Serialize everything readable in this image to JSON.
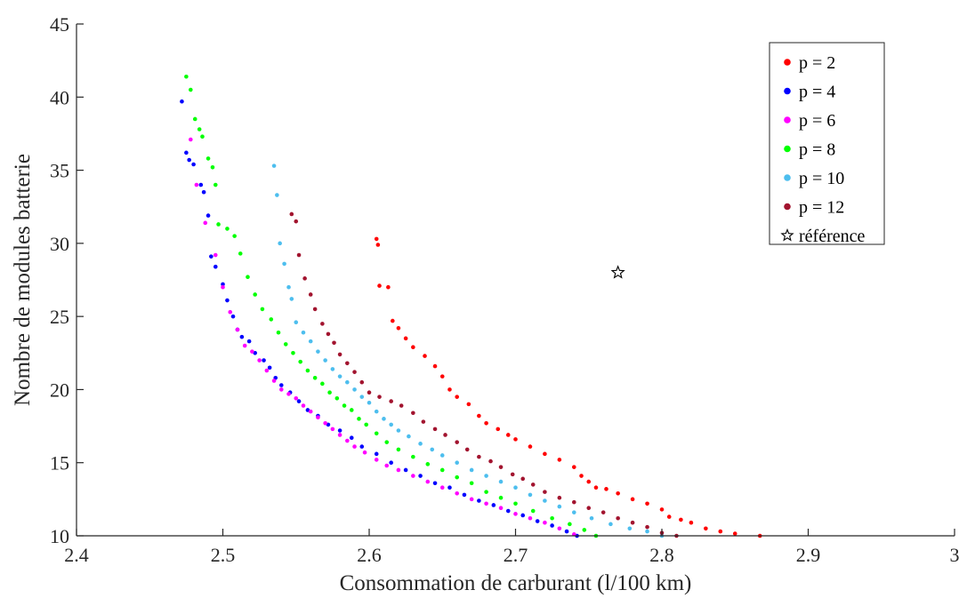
{
  "chart_data": {
    "type": "scatter",
    "title": "",
    "xlabel": "Consommation de carburant (l/100 km)",
    "ylabel": "Nombre de modules batterie",
    "xlim": [
      2.4,
      3.0
    ],
    "ylim": [
      10,
      45
    ],
    "x_ticks": [
      "2.4",
      "2.5",
      "2.6",
      "2.7",
      "2.8",
      "2.9",
      "3"
    ],
    "y_ticks": [
      "10",
      "15",
      "20",
      "25",
      "30",
      "35",
      "40",
      "45"
    ],
    "grid": false,
    "legend_position": "top-right",
    "series": [
      {
        "name": "p = 2",
        "color": "#ff0000",
        "points": [
          [
            2.605,
            30.3
          ],
          [
            2.606,
            29.9
          ],
          [
            2.607,
            27.1
          ],
          [
            2.613,
            27.0
          ],
          [
            2.616,
            24.7
          ],
          [
            2.62,
            24.2
          ],
          [
            2.625,
            23.5
          ],
          [
            2.63,
            22.9
          ],
          [
            2.638,
            22.3
          ],
          [
            2.645,
            21.6
          ],
          [
            2.65,
            20.9
          ],
          [
            2.655,
            20.0
          ],
          [
            2.66,
            19.5
          ],
          [
            2.668,
            19.0
          ],
          [
            2.675,
            18.2
          ],
          [
            2.68,
            17.7
          ],
          [
            2.688,
            17.3
          ],
          [
            2.695,
            16.9
          ],
          [
            2.7,
            16.6
          ],
          [
            2.71,
            16.1
          ],
          [
            2.72,
            15.6
          ],
          [
            2.73,
            15.2
          ],
          [
            2.74,
            14.7
          ],
          [
            2.745,
            14.1
          ],
          [
            2.75,
            13.7
          ],
          [
            2.755,
            13.3
          ],
          [
            2.762,
            13.2
          ],
          [
            2.77,
            12.9
          ],
          [
            2.78,
            12.5
          ],
          [
            2.79,
            12.2
          ],
          [
            2.8,
            11.8
          ],
          [
            2.805,
            11.3
          ],
          [
            2.813,
            11.1
          ],
          [
            2.82,
            10.9
          ],
          [
            2.83,
            10.5
          ],
          [
            2.84,
            10.3
          ],
          [
            2.85,
            10.15
          ],
          [
            2.867,
            10.0
          ]
        ]
      },
      {
        "name": "p = 4",
        "color": "#0000ff",
        "points": [
          [
            2.472,
            39.7
          ],
          [
            2.475,
            36.2
          ],
          [
            2.477,
            35.7
          ],
          [
            2.48,
            35.4
          ],
          [
            2.485,
            34.0
          ],
          [
            2.487,
            33.5
          ],
          [
            2.49,
            31.9
          ],
          [
            2.492,
            29.1
          ],
          [
            2.495,
            28.4
          ],
          [
            2.5,
            27.2
          ],
          [
            2.503,
            26.1
          ],
          [
            2.507,
            25.0
          ],
          [
            2.51,
            24.1
          ],
          [
            2.513,
            23.6
          ],
          [
            2.518,
            23.3
          ],
          [
            2.522,
            22.5
          ],
          [
            2.528,
            22.0
          ],
          [
            2.532,
            21.5
          ],
          [
            2.536,
            20.8
          ],
          [
            2.54,
            20.3
          ],
          [
            2.546,
            19.8
          ],
          [
            2.552,
            19.2
          ],
          [
            2.558,
            18.6
          ],
          [
            2.565,
            18.2
          ],
          [
            2.572,
            17.6
          ],
          [
            2.58,
            17.2
          ],
          [
            2.588,
            16.7
          ],
          [
            2.595,
            16.1
          ],
          [
            2.605,
            15.6
          ],
          [
            2.615,
            15.0
          ],
          [
            2.625,
            14.5
          ],
          [
            2.635,
            14.1
          ],
          [
            2.645,
            13.6
          ],
          [
            2.655,
            13.3
          ],
          [
            2.665,
            12.8
          ],
          [
            2.675,
            12.4
          ],
          [
            2.685,
            12.1
          ],
          [
            2.695,
            11.7
          ],
          [
            2.705,
            11.4
          ],
          [
            2.715,
            11.0
          ],
          [
            2.725,
            10.7
          ],
          [
            2.735,
            10.3
          ],
          [
            2.742,
            10.0
          ]
        ]
      },
      {
        "name": "p = 6",
        "color": "#ff00ff",
        "points": [
          [
            2.478,
            37.1
          ],
          [
            2.482,
            34.0
          ],
          [
            2.488,
            31.4
          ],
          [
            2.495,
            29.2
          ],
          [
            2.5,
            27.0
          ],
          [
            2.505,
            25.3
          ],
          [
            2.51,
            24.1
          ],
          [
            2.515,
            23.0
          ],
          [
            2.52,
            22.6
          ],
          [
            2.525,
            22.0
          ],
          [
            2.53,
            21.3
          ],
          [
            2.535,
            20.6
          ],
          [
            2.54,
            20.0
          ],
          [
            2.545,
            19.7
          ],
          [
            2.55,
            19.4
          ],
          [
            2.555,
            18.9
          ],
          [
            2.56,
            18.5
          ],
          [
            2.565,
            18.1
          ],
          [
            2.57,
            17.7
          ],
          [
            2.575,
            17.3
          ],
          [
            2.58,
            16.9
          ],
          [
            2.585,
            16.5
          ],
          [
            2.59,
            16.1
          ],
          [
            2.597,
            15.7
          ],
          [
            2.605,
            15.2
          ],
          [
            2.612,
            14.8
          ],
          [
            2.62,
            14.5
          ],
          [
            2.63,
            14.1
          ],
          [
            2.64,
            13.7
          ],
          [
            2.65,
            13.3
          ],
          [
            2.66,
            12.9
          ],
          [
            2.67,
            12.5
          ],
          [
            2.68,
            12.2
          ],
          [
            2.69,
            11.9
          ],
          [
            2.7,
            11.5
          ],
          [
            2.71,
            11.2
          ],
          [
            2.72,
            10.9
          ],
          [
            2.73,
            10.5
          ],
          [
            2.74,
            10.1
          ]
        ]
      },
      {
        "name": "p = 8",
        "color": "#00ff00",
        "points": [
          [
            2.475,
            41.4
          ],
          [
            2.478,
            40.5
          ],
          [
            2.481,
            38.5
          ],
          [
            2.484,
            37.8
          ],
          [
            2.486,
            37.3
          ],
          [
            2.49,
            35.8
          ],
          [
            2.493,
            35.2
          ],
          [
            2.495,
            34.0
          ],
          [
            2.497,
            31.3
          ],
          [
            2.503,
            31.0
          ],
          [
            2.508,
            30.5
          ],
          [
            2.512,
            29.3
          ],
          [
            2.517,
            27.7
          ],
          [
            2.522,
            26.5
          ],
          [
            2.527,
            25.5
          ],
          [
            2.533,
            24.8
          ],
          [
            2.538,
            23.9
          ],
          [
            2.543,
            23.1
          ],
          [
            2.548,
            22.5
          ],
          [
            2.553,
            21.9
          ],
          [
            2.558,
            21.3
          ],
          [
            2.563,
            20.8
          ],
          [
            2.568,
            20.4
          ],
          [
            2.573,
            19.8
          ],
          [
            2.578,
            19.4
          ],
          [
            2.583,
            18.9
          ],
          [
            2.588,
            18.6
          ],
          [
            2.593,
            18.0
          ],
          [
            2.598,
            17.6
          ],
          [
            2.605,
            17.0
          ],
          [
            2.612,
            16.4
          ],
          [
            2.62,
            15.9
          ],
          [
            2.63,
            15.4
          ],
          [
            2.64,
            14.9
          ],
          [
            2.65,
            14.5
          ],
          [
            2.66,
            14.0
          ],
          [
            2.67,
            13.6
          ],
          [
            2.68,
            13.0
          ],
          [
            2.69,
            12.6
          ],
          [
            2.7,
            12.2
          ],
          [
            2.712,
            11.7
          ],
          [
            2.725,
            11.2
          ],
          [
            2.737,
            10.8
          ],
          [
            2.747,
            10.4
          ],
          [
            2.755,
            10.0
          ]
        ]
      },
      {
        "name": "p = 10",
        "color": "#4dbeee",
        "points": [
          [
            2.535,
            35.3
          ],
          [
            2.537,
            33.3
          ],
          [
            2.539,
            30.0
          ],
          [
            2.542,
            28.6
          ],
          [
            2.545,
            27.0
          ],
          [
            2.547,
            26.2
          ],
          [
            2.55,
            24.6
          ],
          [
            2.555,
            23.9
          ],
          [
            2.56,
            23.3
          ],
          [
            2.565,
            22.6
          ],
          [
            2.57,
            22.0
          ],
          [
            2.575,
            21.4
          ],
          [
            2.58,
            20.9
          ],
          [
            2.585,
            20.5
          ],
          [
            2.59,
            20.0
          ],
          [
            2.595,
            19.5
          ],
          [
            2.6,
            19.1
          ],
          [
            2.605,
            18.5
          ],
          [
            2.61,
            18.0
          ],
          [
            2.615,
            17.6
          ],
          [
            2.62,
            17.2
          ],
          [
            2.627,
            16.8
          ],
          [
            2.635,
            16.3
          ],
          [
            2.643,
            15.9
          ],
          [
            2.65,
            15.5
          ],
          [
            2.66,
            15.0
          ],
          [
            2.67,
            14.5
          ],
          [
            2.68,
            14.1
          ],
          [
            2.69,
            13.7
          ],
          [
            2.7,
            13.3
          ],
          [
            2.71,
            12.8
          ],
          [
            2.72,
            12.4
          ],
          [
            2.73,
            12.0
          ],
          [
            2.74,
            11.6
          ],
          [
            2.752,
            11.2
          ],
          [
            2.765,
            10.8
          ],
          [
            2.778,
            10.5
          ],
          [
            2.79,
            10.3
          ],
          [
            2.8,
            10.0
          ]
        ]
      },
      {
        "name": "p = 12",
        "color": "#a2142f",
        "points": [
          [
            2.547,
            32.0
          ],
          [
            2.55,
            31.5
          ],
          [
            2.552,
            29.2
          ],
          [
            2.556,
            27.6
          ],
          [
            2.56,
            26.5
          ],
          [
            2.563,
            25.5
          ],
          [
            2.568,
            24.5
          ],
          [
            2.572,
            23.8
          ],
          [
            2.576,
            23.2
          ],
          [
            2.58,
            22.4
          ],
          [
            2.585,
            21.8
          ],
          [
            2.59,
            21.2
          ],
          [
            2.595,
            20.5
          ],
          [
            2.6,
            19.8
          ],
          [
            2.607,
            19.5
          ],
          [
            2.615,
            19.2
          ],
          [
            2.622,
            18.9
          ],
          [
            2.63,
            18.4
          ],
          [
            2.637,
            17.8
          ],
          [
            2.645,
            17.3
          ],
          [
            2.652,
            16.9
          ],
          [
            2.66,
            16.4
          ],
          [
            2.667,
            15.9
          ],
          [
            2.675,
            15.4
          ],
          [
            2.683,
            15.1
          ],
          [
            2.69,
            14.7
          ],
          [
            2.698,
            14.2
          ],
          [
            2.705,
            13.9
          ],
          [
            2.712,
            13.5
          ],
          [
            2.72,
            13.0
          ],
          [
            2.73,
            12.6
          ],
          [
            2.74,
            12.3
          ],
          [
            2.75,
            11.9
          ],
          [
            2.76,
            11.6
          ],
          [
            2.77,
            11.2
          ],
          [
            2.78,
            10.9
          ],
          [
            2.79,
            10.6
          ],
          [
            2.8,
            10.2
          ],
          [
            2.81,
            10.0
          ]
        ]
      },
      {
        "name": "référence",
        "color": "#000000",
        "marker": "star",
        "points": [
          [
            2.77,
            28.0
          ]
        ]
      }
    ]
  }
}
